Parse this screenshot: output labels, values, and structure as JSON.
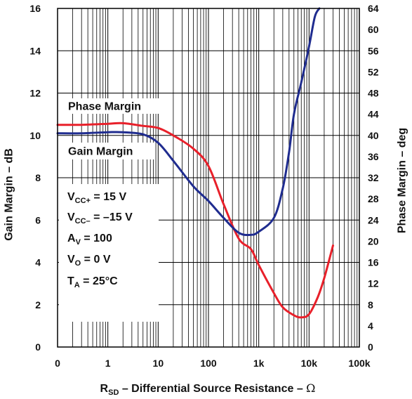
{
  "chart_data": {
    "type": "line",
    "x_scale": "log",
    "x_ticks": [
      {
        "value": 0.1,
        "label": "0"
      },
      {
        "value": 1,
        "label": "1"
      },
      {
        "value": 10,
        "label": "10"
      },
      {
        "value": 100,
        "label": "100"
      },
      {
        "value": 1000,
        "label": "1k"
      },
      {
        "value": 10000,
        "label": "10k"
      },
      {
        "value": 100000,
        "label": "100k"
      }
    ],
    "xlim": [
      0.1,
      100000
    ],
    "xlabel": {
      "main": "R",
      "sub": "SD",
      "rest": " – Differential Source Resistance – ",
      "unit": "Ω"
    },
    "ylabel_left": "Gain Margin – dB",
    "ylim_left": [
      0,
      16
    ],
    "yticks_left": [
      0,
      2,
      4,
      6,
      8,
      10,
      12,
      14,
      16
    ],
    "ylabel_right": "Phase Margin – deg",
    "ylim_right": [
      0,
      64
    ],
    "yticks_right": [
      0,
      4,
      8,
      12,
      16,
      20,
      24,
      28,
      32,
      36,
      40,
      44,
      48,
      52,
      56,
      60,
      64
    ],
    "grid": true,
    "series": [
      {
        "name": "Phase Margin",
        "axis": "right",
        "color": "#e8202a",
        "x": [
          0.1,
          0.3,
          1,
          2,
          5,
          10,
          20,
          50,
          100,
          200,
          400,
          700,
          1000,
          2000,
          3000,
          5000,
          7000,
          10000,
          15000,
          20000,
          30000
        ],
        "y": [
          42,
          42,
          42.2,
          42.3,
          41.8,
          41.4,
          40,
          37.5,
          34.2,
          27,
          20.5,
          18.5,
          15.5,
          10.2,
          7.5,
          6,
          5.6,
          6.2,
          9.5,
          13,
          19.2
        ]
      },
      {
        "name": "Gain Margin",
        "axis": "left",
        "color": "#1f2c8f",
        "x": [
          0.1,
          0.3,
          1,
          2,
          5,
          10,
          20,
          50,
          100,
          200,
          400,
          700,
          1000,
          2000,
          3000,
          4000,
          5000,
          7000,
          10000,
          13000,
          16000
        ],
        "y": [
          10.1,
          10.1,
          10.15,
          10.15,
          10.05,
          9.65,
          8.8,
          7.6,
          6.9,
          6.1,
          5.4,
          5.3,
          5.45,
          6.1,
          7.5,
          9.2,
          11,
          12.5,
          14.2,
          15.6,
          16
        ]
      }
    ],
    "annotations": [
      {
        "text": "Phase Margin",
        "series": "Phase Margin"
      },
      {
        "text": "Gain Margin",
        "series": "Gain Margin"
      }
    ],
    "conditions": [
      {
        "main": "V",
        "sub": "CC+",
        "rest": " = 15 V"
      },
      {
        "main": "V",
        "sub": "CC–",
        "rest": " = –15 V"
      },
      {
        "main": "A",
        "sub": "V",
        "rest": " = 100"
      },
      {
        "main": "V",
        "sub": "O",
        "rest": " = 0 V"
      },
      {
        "main": "T",
        "sub": "A",
        "rest": " = 25°C"
      }
    ]
  }
}
